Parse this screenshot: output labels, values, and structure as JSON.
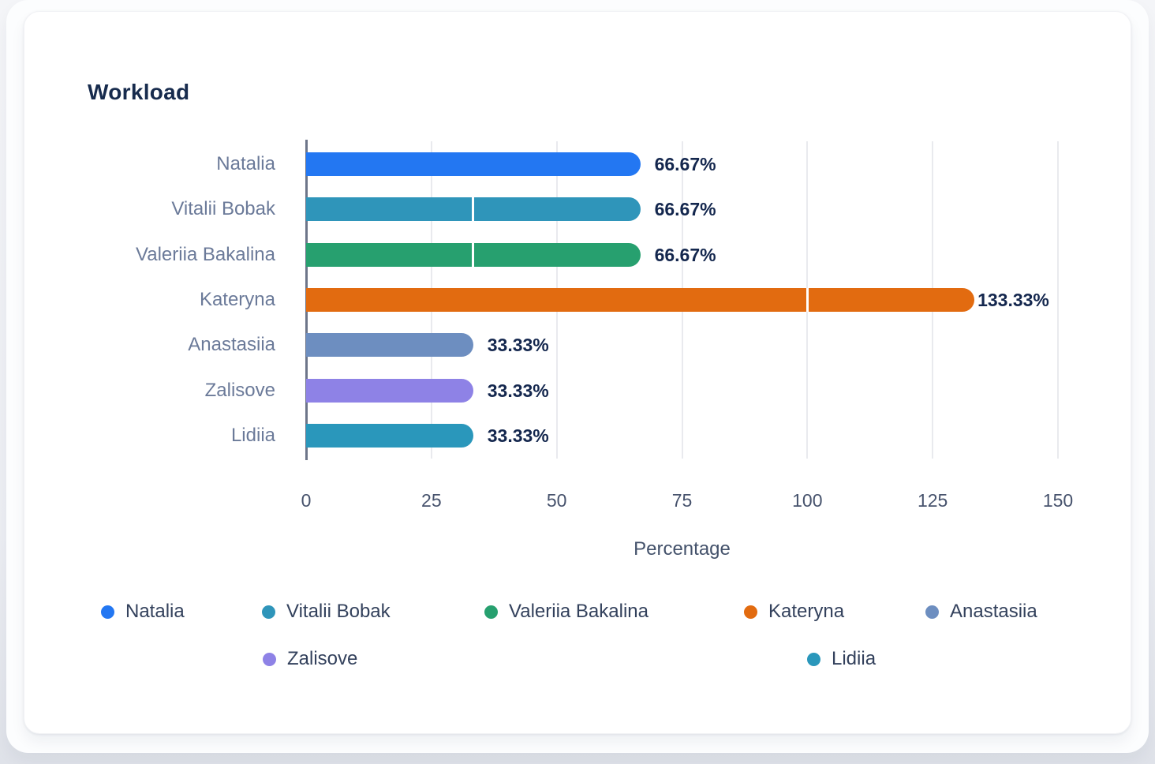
{
  "chart_data": {
    "type": "bar",
    "orientation": "horizontal",
    "title": "Workload",
    "xlabel": "Percentage",
    "categories": [
      "Natalia",
      "Vitalii Bobak",
      "Valeriia Bakalina",
      "Kateryna",
      "Anastasiia",
      "Zalisove",
      "Lidiia"
    ],
    "values": [
      66.67,
      66.67,
      66.67,
      133.33,
      33.33,
      33.33,
      33.33
    ],
    "value_labels": [
      "66.67%",
      "66.67%",
      "66.67%",
      "133.33%",
      "33.33%",
      "33.33%",
      "33.33%"
    ],
    "segments": [
      [
        66.67
      ],
      [
        33.33,
        33.34
      ],
      [
        33.33,
        33.34
      ],
      [
        100,
        33.33
      ],
      [
        33.33
      ],
      [
        33.33
      ],
      [
        33.33
      ]
    ],
    "bar_colors": [
      "#2377f2",
      "#2f95ba",
      "#27a06f",
      "#e26b10",
      "#6d8ec0",
      "#8e82e6",
      "#2a97bb"
    ],
    "xlim": [
      0,
      150
    ],
    "x_ticks": [
      "0",
      "25",
      "50",
      "75",
      "100",
      "125",
      "150"
    ],
    "grid": true,
    "legend_position": "bottom",
    "legend": [
      {
        "label": "Natalia",
        "color": "#2377f2"
      },
      {
        "label": "Vitalii Bobak",
        "color": "#2f95ba"
      },
      {
        "label": "Valeriia Bakalina",
        "color": "#27a06f"
      },
      {
        "label": "Kateryna",
        "color": "#e26b10"
      },
      {
        "label": "Anastasiia",
        "color": "#6d8ec0"
      },
      {
        "label": "Zalisove",
        "color": "#8e82e6"
      },
      {
        "label": "Lidiia",
        "color": "#2a97bb"
      }
    ],
    "colors": {
      "title_text": "#172b4d",
      "value_label_text": "#14274e",
      "category_label_text": "#6b7a99",
      "tick_text": "#47536d",
      "legend_text": "#33415c",
      "gridline": "#e9eaee",
      "axis_line": "#6d7589",
      "card_background": "#ffffff"
    }
  }
}
